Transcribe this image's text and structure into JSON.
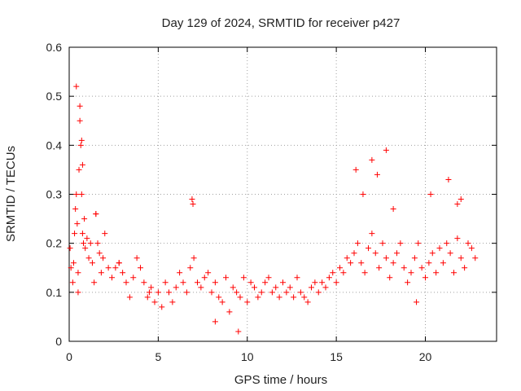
{
  "chart_data": {
    "type": "scatter",
    "title": "Day 129 of 2024, SRMTID for receiver p427",
    "xlabel": "GPS time / hours",
    "ylabel": "SRMTID / TECUs",
    "xlim": [
      0,
      24
    ],
    "ylim": [
      0,
      0.6
    ],
    "x_ticks": [
      "0",
      "5",
      "10",
      "15",
      "20"
    ],
    "y_ticks": [
      "0",
      "0.1",
      "0.2",
      "0.3",
      "0.4",
      "0.5",
      "0.6"
    ],
    "grid": true,
    "marker": "+",
    "color": "#ff0000",
    "series": [
      {
        "name": "SRMTID",
        "x": [
          0.05,
          0.1,
          0.2,
          0.25,
          0.3,
          0.35,
          0.4,
          0.45,
          0.5,
          0.55,
          0.6,
          0.65,
          0.7,
          0.75,
          0.8,
          0.85,
          0.9,
          1.0,
          1.1,
          1.2,
          1.3,
          1.4,
          1.5,
          1.6,
          1.7,
          1.8,
          1.9,
          2.0,
          2.2,
          2.4,
          2.6,
          2.8,
          3.0,
          3.2,
          3.4,
          3.6,
          3.8,
          4.0,
          4.2,
          4.4,
          4.6,
          4.8,
          5.0,
          5.2,
          5.4,
          5.6,
          5.8,
          6.0,
          6.2,
          6.4,
          6.6,
          6.8,
          7.0,
          7.2,
          7.4,
          7.6,
          7.8,
          8.0,
          8.2,
          8.4,
          8.6,
          8.8,
          9.0,
          9.2,
          9.4,
          9.6,
          9.8,
          10.0,
          10.2,
          10.4,
          10.6,
          10.8,
          11.0,
          11.2,
          11.4,
          11.6,
          11.8,
          12.0,
          12.2,
          12.4,
          12.6,
          12.8,
          13.0,
          13.2,
          13.4,
          13.6,
          13.8,
          14.0,
          14.2,
          14.4,
          14.6,
          14.8,
          15.0,
          15.2,
          15.4,
          15.6,
          15.8,
          16.0,
          16.2,
          16.4,
          16.6,
          16.8,
          17.0,
          17.2,
          17.4,
          17.6,
          17.8,
          18.0,
          18.2,
          18.4,
          18.6,
          18.8,
          19.0,
          19.2,
          19.4,
          19.6,
          19.8,
          20.0,
          20.2,
          20.4,
          20.6,
          20.8,
          21.0,
          21.2,
          21.4,
          21.6,
          21.8,
          22.0,
          22.2,
          22.4,
          22.6,
          22.8,
          0.4,
          0.6,
          0.7,
          0.75,
          0.5,
          1.5,
          2.8,
          4.5,
          6.9,
          6.95,
          8.2,
          9.5,
          16.1,
          16.5,
          17.0,
          17.3,
          17.8,
          18.2,
          19.5,
          20.3,
          21.3,
          21.8,
          22.0
        ],
        "y": [
          0.19,
          0.15,
          0.12,
          0.16,
          0.22,
          0.27,
          0.3,
          0.24,
          0.14,
          0.35,
          0.45,
          0.4,
          0.3,
          0.22,
          0.2,
          0.25,
          0.19,
          0.21,
          0.17,
          0.2,
          0.16,
          0.12,
          0.26,
          0.2,
          0.18,
          0.14,
          0.17,
          0.22,
          0.15,
          0.13,
          0.15,
          0.16,
          0.14,
          0.12,
          0.09,
          0.13,
          0.17,
          0.15,
          0.12,
          0.09,
          0.11,
          0.08,
          0.1,
          0.07,
          0.12,
          0.1,
          0.08,
          0.11,
          0.14,
          0.12,
          0.1,
          0.15,
          0.17,
          0.12,
          0.11,
          0.13,
          0.14,
          0.1,
          0.12,
          0.09,
          0.08,
          0.13,
          0.06,
          0.11,
          0.1,
          0.09,
          0.13,
          0.08,
          0.12,
          0.11,
          0.09,
          0.1,
          0.12,
          0.13,
          0.1,
          0.11,
          0.09,
          0.12,
          0.1,
          0.11,
          0.09,
          0.13,
          0.1,
          0.09,
          0.08,
          0.11,
          0.12,
          0.1,
          0.12,
          0.11,
          0.13,
          0.14,
          0.12,
          0.15,
          0.14,
          0.17,
          0.16,
          0.18,
          0.2,
          0.16,
          0.14,
          0.19,
          0.22,
          0.18,
          0.15,
          0.2,
          0.17,
          0.13,
          0.16,
          0.18,
          0.2,
          0.15,
          0.12,
          0.14,
          0.17,
          0.2,
          0.15,
          0.13,
          0.16,
          0.18,
          0.14,
          0.19,
          0.16,
          0.2,
          0.18,
          0.14,
          0.21,
          0.17,
          0.15,
          0.2,
          0.19,
          0.17,
          0.52,
          0.48,
          0.41,
          0.36,
          0.1,
          0.26,
          0.16,
          0.1,
          0.29,
          0.28,
          0.04,
          0.02,
          0.35,
          0.3,
          0.37,
          0.34,
          0.39,
          0.27,
          0.08,
          0.3,
          0.33,
          0.28,
          0.29
        ]
      }
    ]
  }
}
